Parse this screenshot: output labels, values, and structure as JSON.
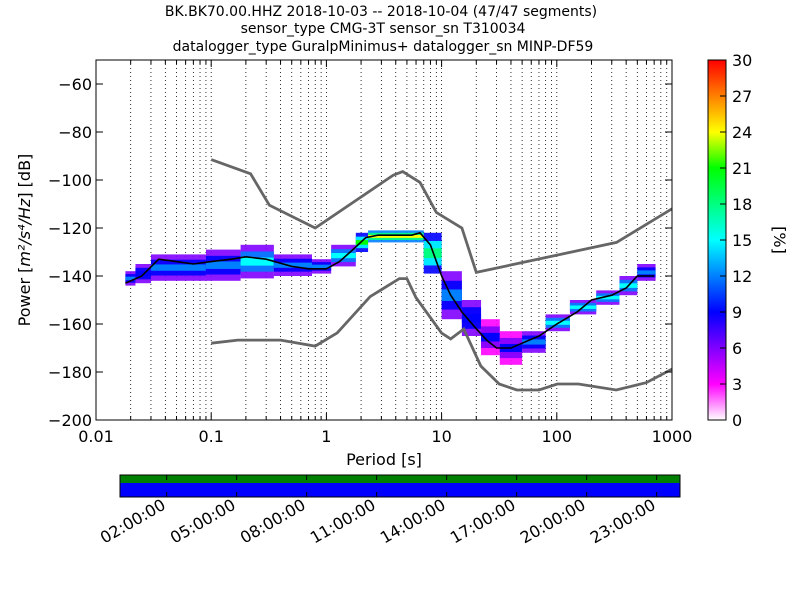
{
  "chart_data": {
    "type": "heatmap",
    "title_lines": [
      "BK.BK70.00.HHZ   2018-10-03 -- 2018-10-04  (47/47 segments)",
      "sensor_type CMG-3T sensor_sn T310034",
      "datalogger_type GuralpMinimus+ datalogger_sn MINP-DF59"
    ],
    "xlabel": "Period [s]",
    "ylabel_prefix": "Power [",
    "ylabel_units": "m²/s⁴/Hz",
    "ylabel_suffix": "] [dB]",
    "x_scale": "log",
    "xlim": [
      0.01,
      1000
    ],
    "ylim": [
      -200,
      -50
    ],
    "x_tick_values": [
      0.01,
      0.1,
      1,
      10,
      100,
      1000
    ],
    "x_tick_labels": [
      "0.01",
      "0.1",
      "1",
      "10",
      "100",
      "1000"
    ],
    "y_tick_values": [
      -200,
      -180,
      -160,
      -140,
      -120,
      -100,
      -80,
      -60
    ],
    "y_tick_labels": [
      "−200",
      "−180",
      "−160",
      "−140",
      "−120",
      "−100",
      "−80",
      "−60"
    ],
    "grid": "dotted vertical at each log subdivision",
    "colorbar": {
      "label": "[%]",
      "range": [
        0,
        30
      ],
      "tick_values": [
        0,
        3,
        6,
        9,
        12,
        15,
        18,
        21,
        24,
        27,
        30
      ],
      "tick_labels": [
        "0",
        "3",
        "6",
        "9",
        "12",
        "15",
        "18",
        "21",
        "24",
        "27",
        "30"
      ],
      "colors": [
        "#ffffff",
        "#ff00ff",
        "#8000ff",
        "#0000ff",
        "#0080ff",
        "#00ffff",
        "#00ff80",
        "#00ff00",
        "#ffff00",
        "#ff8000",
        "#ff0000"
      ]
    },
    "nhnm": {
      "x": [
        0.1,
        0.22,
        0.32,
        0.8,
        3.8,
        4.6,
        6.5,
        9,
        15,
        20,
        330,
        1000
      ],
      "y": [
        -91.5,
        -97.4,
        -110.5,
        -120,
        -98,
        -96.5,
        -101,
        -113.5,
        -120,
        -138.5,
        -126,
        -112
      ]
    },
    "nlnm": {
      "x": [
        0.1,
        0.17,
        0.4,
        0.8,
        1.24,
        2.4,
        4.3,
        5.0,
        6.0,
        10,
        12,
        15.6,
        21.9,
        31.6,
        45,
        70,
        101,
        154,
        328,
        600,
        1000
      ],
      "y": [
        -168,
        -166.7,
        -166.7,
        -169.2,
        -163.7,
        -148.6,
        -141.1,
        -141.1,
        -149,
        -163.8,
        -166.2,
        -162.1,
        -177.5,
        -185,
        -187.5,
        -187.5,
        -185,
        -185,
        -187.5,
        -184.4,
        -178.8
      ]
    },
    "mode": {
      "x": [
        0.018,
        0.025,
        0.035,
        0.05,
        0.07,
        0.1,
        0.15,
        0.2,
        0.3,
        0.5,
        0.7,
        1.0,
        1.3,
        1.7,
        2.2,
        2.8,
        3.5,
        4.5,
        5.5,
        6.5,
        8,
        10,
        12,
        15,
        20,
        25,
        30,
        40,
        50,
        70,
        100,
        150,
        200,
        300,
        400,
        500,
        700
      ],
      "y": [
        -143,
        -140,
        -133,
        -134,
        -135,
        -134,
        -133,
        -132,
        -133,
        -136,
        -137,
        -137,
        -134,
        -129,
        -124,
        -123,
        -123,
        -123,
        -123,
        -122,
        -127,
        -140,
        -148,
        -155,
        -162,
        -167,
        -170,
        -170,
        -168,
        -165,
        -160,
        -155,
        -150,
        -148,
        -145,
        -140,
        -140
      ]
    },
    "pdf_bands": [
      {
        "x": [
          0.018,
          0.022
        ],
        "y": [
          -144,
          -138
        ],
        "percent": 12
      },
      {
        "x": [
          0.022,
          0.03
        ],
        "y": [
          -143,
          -135
        ],
        "percent": 10
      },
      {
        "x": [
          0.03,
          0.09
        ],
        "y": [
          -142,
          -131
        ],
        "percent": 12
      },
      {
        "x": [
          0.09,
          0.18
        ],
        "y": [
          -142,
          -129
        ],
        "percent": 13
      },
      {
        "x": [
          0.18,
          0.35
        ],
        "y": [
          -141,
          -127
        ],
        "percent": 14
      },
      {
        "x": [
          0.35,
          0.75
        ],
        "y": [
          -140,
          -131
        ],
        "percent": 13
      },
      {
        "x": [
          0.75,
          1.1
        ],
        "y": [
          -139,
          -133
        ],
        "percent": 12
      },
      {
        "x": [
          1.1,
          1.8
        ],
        "y": [
          -136,
          -127
        ],
        "percent": 16
      },
      {
        "x": [
          1.8,
          2.3
        ],
        "y": [
          -130,
          -122
        ],
        "percent": 20
      },
      {
        "x": [
          2.3,
          7.0
        ],
        "y": [
          -126,
          -121
        ],
        "percent": 24
      },
      {
        "x": [
          7.0,
          10
        ],
        "y": [
          -139,
          -122
        ],
        "percent": 18
      },
      {
        "x": [
          10,
          15
        ],
        "y": [
          -158,
          -138
        ],
        "percent": 13
      },
      {
        "x": [
          15,
          22
        ],
        "y": [
          -165,
          -150
        ],
        "percent": 10
      },
      {
        "x": [
          22,
          32
        ],
        "y": [
          -173,
          -158
        ],
        "percent": 9
      },
      {
        "x": [
          32,
          50
        ],
        "y": [
          -177,
          -163
        ],
        "percent": 8
      },
      {
        "x": [
          50,
          80
        ],
        "y": [
          -172,
          -163
        ],
        "percent": 12
      },
      {
        "x": [
          80,
          130
        ],
        "y": [
          -163,
          -156
        ],
        "percent": 14
      },
      {
        "x": [
          130,
          220
        ],
        "y": [
          -156,
          -150
        ],
        "percent": 14
      },
      {
        "x": [
          220,
          350
        ],
        "y": [
          -152,
          -146
        ],
        "percent": 16
      },
      {
        "x": [
          350,
          500
        ],
        "y": [
          -148,
          -140
        ],
        "percent": 14
      },
      {
        "x": [
          500,
          720
        ],
        "y": [
          -142,
          -135
        ],
        "percent": 13
      }
    ],
    "timeline": {
      "tick_labels": [
        "02:00:00",
        "05:00:00",
        "08:00:00",
        "11:00:00",
        "14:00:00",
        "17:00:00",
        "20:00:00",
        "23:00:00"
      ],
      "tick_hours": [
        2,
        5,
        8,
        11,
        14,
        17,
        20,
        23
      ],
      "range_hours": [
        0,
        24
      ],
      "top_color": "#008000",
      "bottom_color": "#0000ff"
    }
  }
}
